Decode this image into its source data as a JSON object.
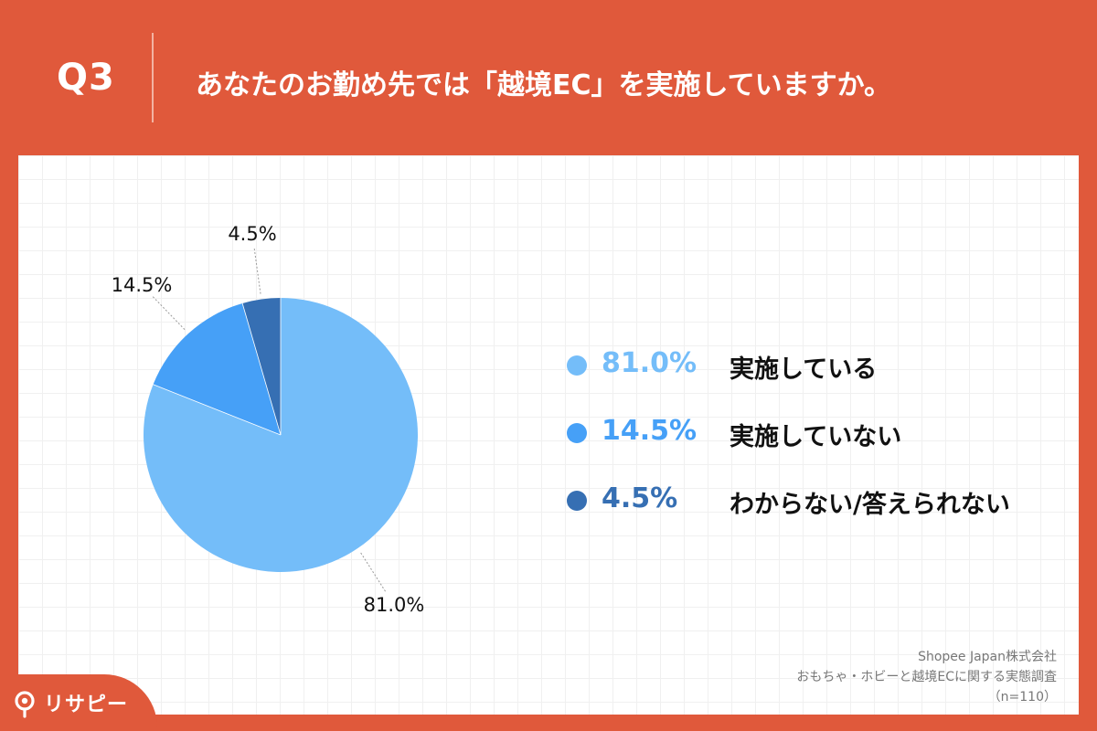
{
  "header": {
    "question_number": "Q3",
    "question_text": "あなたのお勤め先では「越境EC」を実施していますか。"
  },
  "chart_data": {
    "type": "pie",
    "title": "",
    "slices": [
      {
        "label": "実施している",
        "value": 81.0,
        "display": "81.0%",
        "color": "#74bdf9"
      },
      {
        "label": "実施していない",
        "value": 14.5,
        "display": "14.5%",
        "color": "#46a0f7"
      },
      {
        "label": "わからない/答えられない",
        "value": 4.5,
        "display": "4.5%",
        "color": "#366fb3"
      }
    ],
    "start_angle_deg": 0,
    "direction": "clockwise",
    "legend_position": "right"
  },
  "legend": {
    "items": [
      {
        "percent": "81.0%",
        "label": "実施している",
        "color": "#74bdf9"
      },
      {
        "percent": "14.5%",
        "label": "実施していない",
        "color": "#46a0f7"
      },
      {
        "percent": "4.5%",
        "label": "わからない/答えられない",
        "color": "#366fb3"
      }
    ]
  },
  "source": {
    "company": "Shopee Japan株式会社",
    "survey": "おもちゃ・ホビーと越境ECに関する実態調査",
    "sample": "（n=110）"
  },
  "logo": {
    "text": "リサピー",
    "brand_color": "#e0593b",
    "icon": "magnifier-icon"
  }
}
